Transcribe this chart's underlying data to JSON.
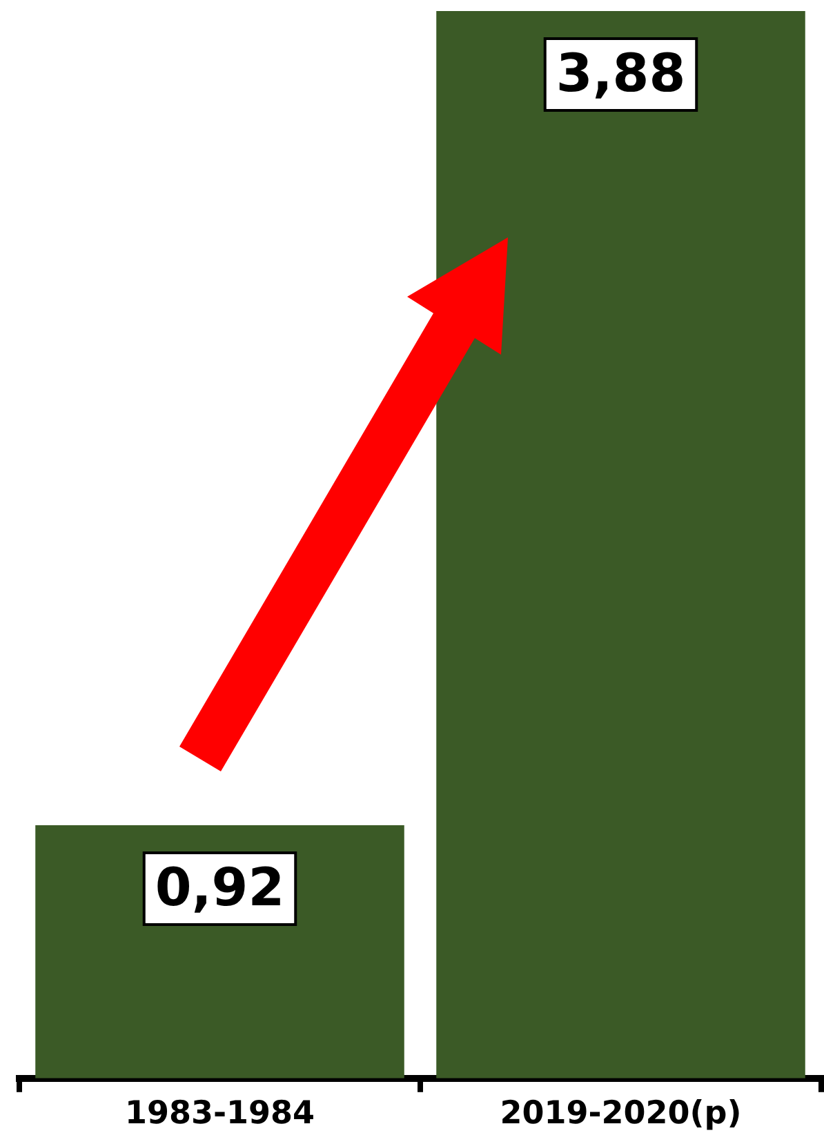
{
  "chart_data": {
    "type": "bar",
    "categories": [
      "1983-1984",
      "2019-2020(p)"
    ],
    "values": [
      0.92,
      3.88
    ],
    "value_labels": [
      "0,92",
      "3,88"
    ],
    "color": "#3b5a26",
    "grid": false,
    "legend": false
  }
}
